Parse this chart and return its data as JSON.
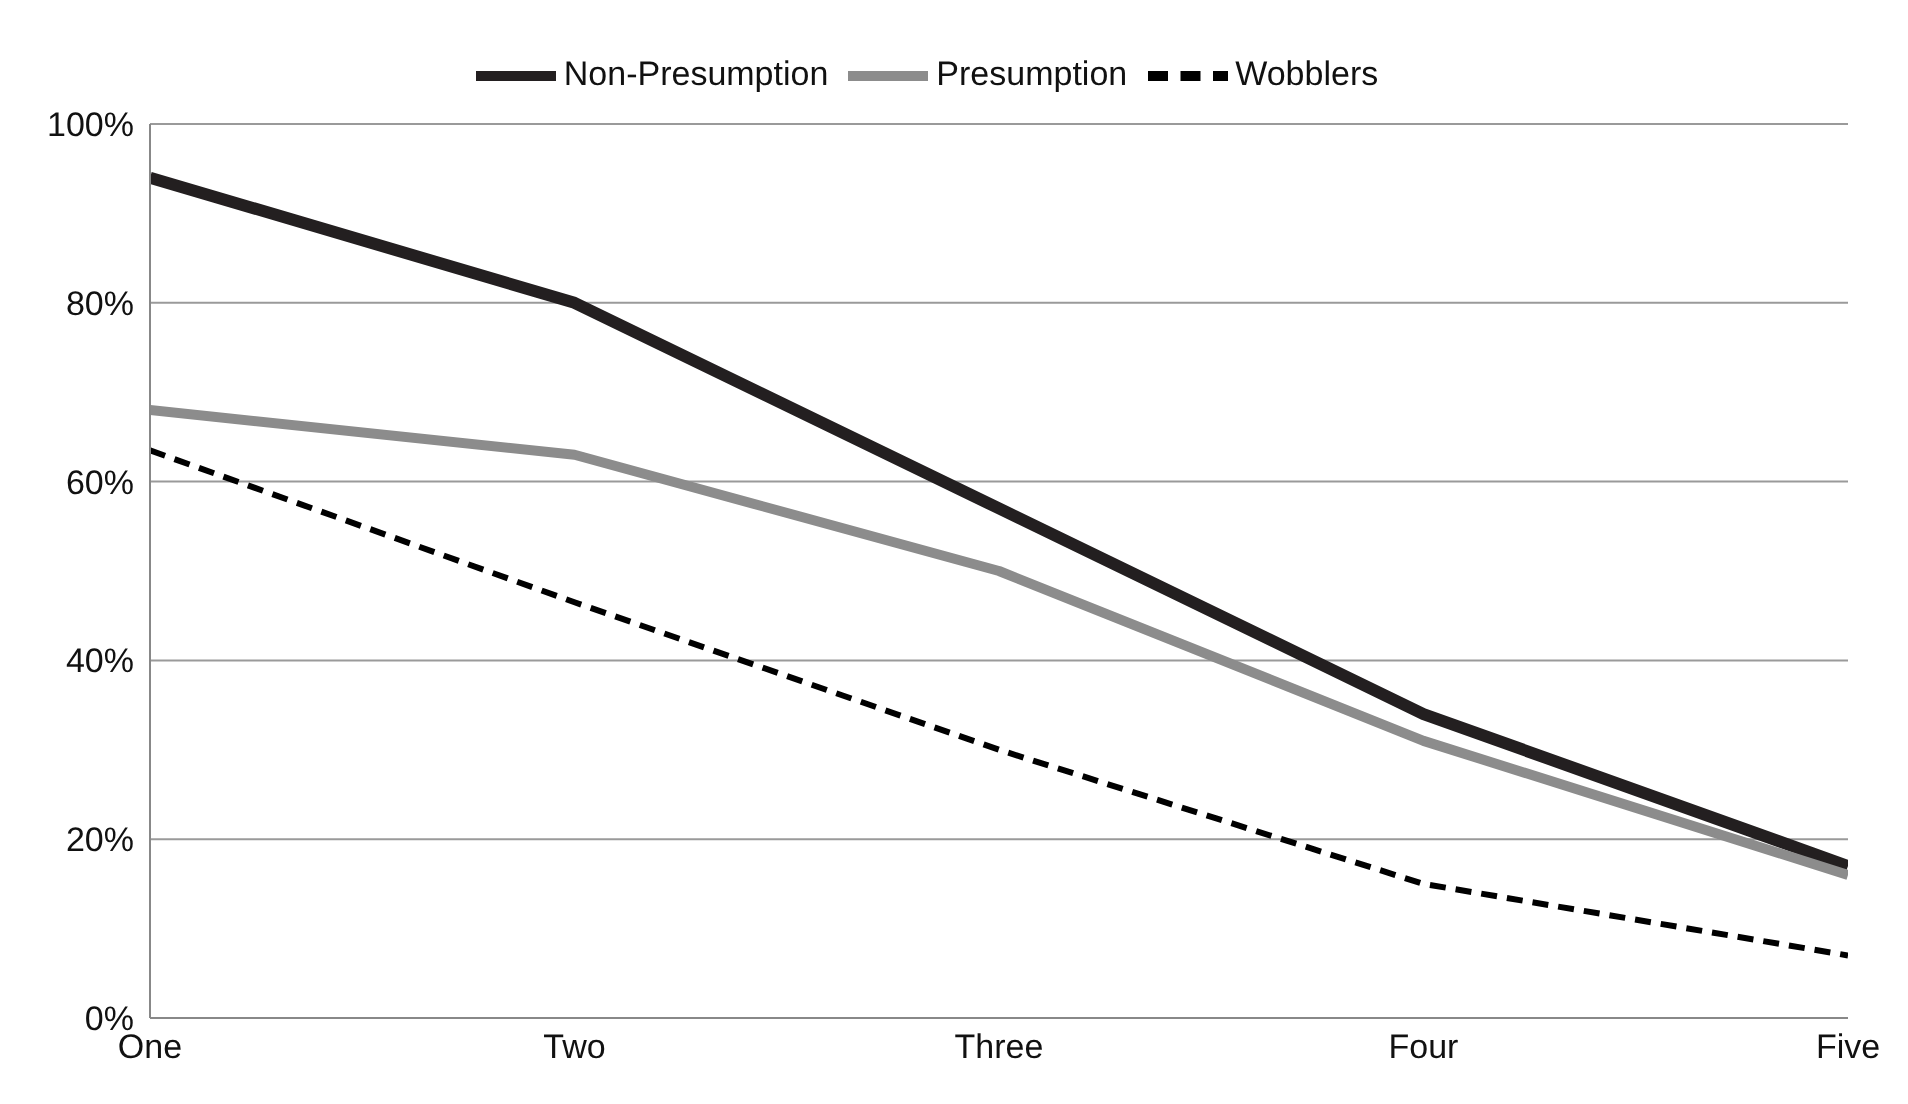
{
  "chart_data": {
    "type": "line",
    "categories": [
      "One",
      "Two",
      "Three",
      "Four",
      "Five"
    ],
    "series": [
      {
        "name": "Non-Presumption",
        "color": "#231f20",
        "values": [
          94,
          80,
          57,
          34,
          17
        ],
        "line_style": "solid"
      },
      {
        "name": "Presumption",
        "color": "#8c8c8c",
        "values": [
          68,
          63,
          50,
          31,
          16
        ],
        "line_style": "solid"
      },
      {
        "name": "Wobblers",
        "color": "#000000",
        "values": [
          63.5,
          46.5,
          30,
          15,
          7
        ],
        "line_style": "dashed"
      }
    ],
    "ylim": [
      0,
      100
    ],
    "yticks": [
      {
        "value": 0,
        "label": "0%"
      },
      {
        "value": 20,
        "label": "20%"
      },
      {
        "value": 40,
        "label": "40%"
      },
      {
        "value": 60,
        "label": "60%"
      },
      {
        "value": 80,
        "label": "80%"
      },
      {
        "value": 100,
        "label": "100%"
      }
    ],
    "grid": "y",
    "legend": "top",
    "marker": "none"
  }
}
